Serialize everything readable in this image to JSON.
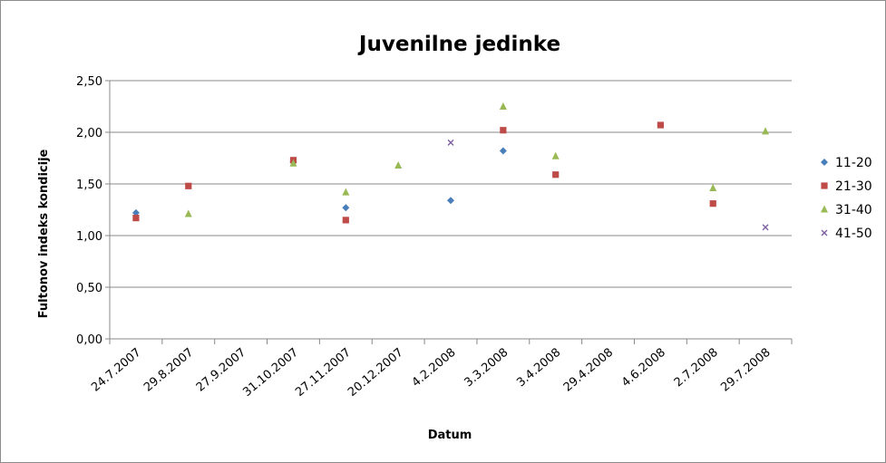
{
  "chart_data": {
    "type": "scatter",
    "title": "Juvenilne jedinke",
    "xlabel": "Datum",
    "ylabel": "Fultonov indeks kondicije",
    "categories": [
      "24.7.2007",
      "29.8.2007",
      "27.9.2007",
      "31.10.2007",
      "27.11.2007",
      "20.12.2007",
      "4.2.2008",
      "3.3.2008",
      "3.4.2008",
      "29.4.2008",
      "4.6.2008",
      "2.7.2008",
      "29.7.2008"
    ],
    "ylim": [
      0,
      2.5
    ],
    "yticks": [
      "0,00",
      "0,50",
      "1,00",
      "1,50",
      "2,00",
      "2,50"
    ],
    "grid": true,
    "legend_position": "right",
    "series": [
      {
        "name": "11-20",
        "color": "#4a7ebb",
        "marker": "diamond",
        "values": [
          1.22,
          null,
          null,
          1.71,
          1.27,
          null,
          1.34,
          1.82,
          null,
          null,
          null,
          null,
          null
        ]
      },
      {
        "name": "21-30",
        "color": "#be4b48",
        "marker": "square",
        "values": [
          1.17,
          1.48,
          null,
          1.73,
          1.15,
          null,
          null,
          2.02,
          1.59,
          null,
          2.07,
          1.31,
          null
        ]
      },
      {
        "name": "31-40",
        "color": "#98b954",
        "marker": "triangle",
        "values": [
          null,
          1.21,
          null,
          1.7,
          1.42,
          1.68,
          null,
          2.25,
          1.77,
          null,
          null,
          1.46,
          2.01
        ]
      },
      {
        "name": "41-50",
        "color": "#7d60a0",
        "marker": "x",
        "values": [
          null,
          null,
          null,
          null,
          null,
          null,
          1.9,
          null,
          null,
          null,
          null,
          null,
          1.08
        ]
      }
    ]
  }
}
